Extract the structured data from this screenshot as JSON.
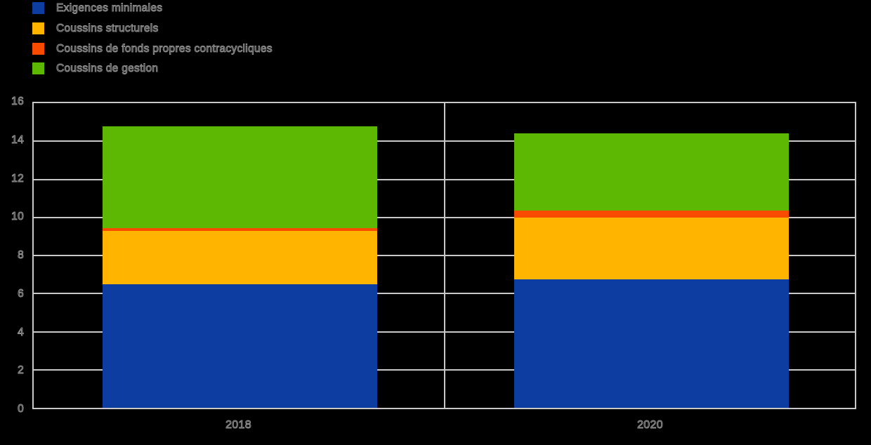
{
  "meta": {
    "background": "#000000"
  },
  "legend": {
    "items": [
      {
        "label": "Exigences minimales",
        "color": "#0d3da0"
      },
      {
        "label": "Coussins structurels",
        "color": "#ffb400"
      },
      {
        "label": "Coussins de fonds propres contracycliques",
        "color": "#f84b00"
      },
      {
        "label": "Coussins de gestion",
        "color": "#5cb802"
      }
    ]
  },
  "chart_data": {
    "type": "bar",
    "stacked": true,
    "title": "",
    "xlabel": "",
    "ylabel": "",
    "categories": [
      "2018",
      "2020"
    ],
    "series": [
      {
        "name": "Exigences minimales",
        "color": "#0d3da0",
        "values": [
          6.5,
          6.75
        ]
      },
      {
        "name": "Coussins structurels",
        "color": "#ffb400",
        "values": [
          2.8,
          3.25
        ]
      },
      {
        "name": "Coussins de fonds propres contracycliques",
        "color": "#f84b00",
        "values": [
          0.15,
          0.35
        ]
      },
      {
        "name": "Coussins de gestion",
        "color": "#5cb802",
        "values": [
          5.35,
          4.05
        ]
      }
    ],
    "stack_totals": [
      14.8,
      14.4
    ],
    "ylim": [
      0,
      16
    ],
    "yticks": [
      0,
      2,
      4,
      6,
      8,
      10,
      12,
      14,
      16
    ],
    "grid": "horizontal",
    "legend_position": "top-left"
  },
  "axes": {
    "y_tick_labels": [
      "0",
      "2",
      "4",
      "6",
      "8",
      "10",
      "12",
      "14",
      "16"
    ],
    "x_tick_labels": [
      "2018",
      "2020"
    ]
  },
  "colors": {
    "grid": "#c8c8c8",
    "frame": "#c8c8c8",
    "text_outline": "#919191",
    "background": "#000000"
  }
}
